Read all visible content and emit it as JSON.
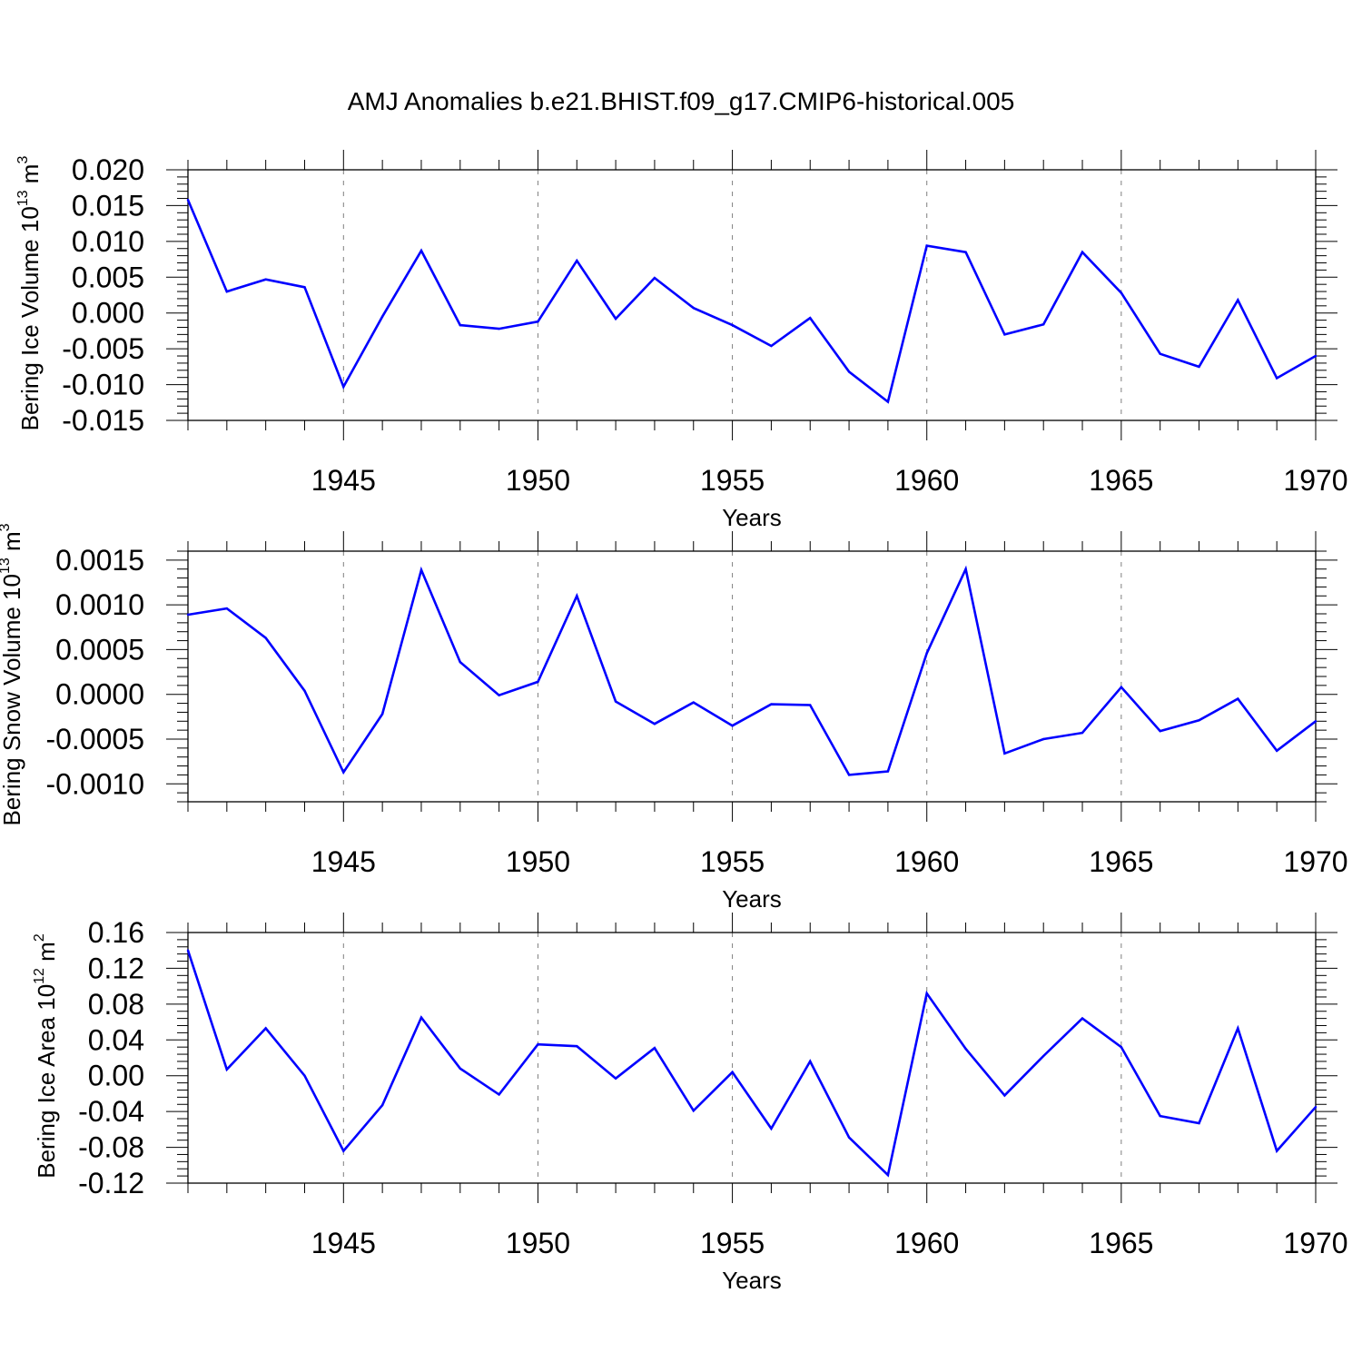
{
  "title": "AMJ Anomalies b.e21.BHIST.f09_g17.CMIP6-historical.005",
  "colors": {
    "series": "#0000ff",
    "axis": "#000000",
    "grid": "#7f7f7f"
  },
  "chart_data": [
    {
      "type": "line",
      "ylabel": {
        "text": "Bering Ice Volume 10",
        "exponent": "13",
        "unit": " m",
        "unit_exponent": "3"
      },
      "xlabel": "Years",
      "xlim": [
        1941,
        1970
      ],
      "ylim": [
        -0.015,
        0.02
      ],
      "yticks": [
        "0.020",
        "0.015",
        "0.010",
        "0.005",
        "0.000",
        "-0.005",
        "-0.010",
        "-0.015"
      ],
      "ytick_values": [
        0.02,
        0.015,
        0.01,
        0.005,
        0.0,
        -0.005,
        -0.01,
        -0.015
      ],
      "xticks": [
        "1945",
        "1950",
        "1955",
        "1960",
        "1965",
        "1970"
      ],
      "xtick_values": [
        1945,
        1950,
        1955,
        1960,
        1965,
        1970
      ],
      "grid": "vertical dashed at major x ticks",
      "x": [
        1941,
        1942,
        1943,
        1944,
        1945,
        1946,
        1947,
        1948,
        1949,
        1950,
        1951,
        1952,
        1953,
        1954,
        1955,
        1956,
        1957,
        1958,
        1959,
        1960,
        1961,
        1962,
        1963,
        1964,
        1965,
        1966,
        1967,
        1968,
        1969,
        1970
      ],
      "series": [
        {
          "values": [
            0.0158,
            0.003,
            0.0047,
            0.0036,
            -0.0103,
            -0.0005,
            0.0087,
            -0.0017,
            -0.0022,
            -0.0012,
            0.0073,
            -0.0008,
            0.0049,
            0.0007,
            -0.0017,
            -0.0046,
            -0.0007,
            -0.0082,
            -0.0124,
            0.0094,
            0.0085,
            -0.003,
            -0.0016,
            0.0085,
            0.0028,
            -0.0057,
            -0.0075,
            0.0018,
            -0.0091,
            -0.006
          ]
        }
      ]
    },
    {
      "type": "line",
      "ylabel": {
        "text": "Bering Snow Volume 10",
        "exponent": "13",
        "unit": " m",
        "unit_exponent": "3"
      },
      "xlabel": "Years",
      "xlim": [
        1941,
        1970
      ],
      "ylim": [
        -0.0012,
        0.0016
      ],
      "yticks": [
        "0.0015",
        "0.0010",
        "0.0005",
        "0.0000",
        "-0.0005",
        "-0.0010"
      ],
      "ytick_values": [
        0.0015,
        0.001,
        0.0005,
        0.0,
        -0.0005,
        -0.001
      ],
      "xticks": [
        "1945",
        "1950",
        "1955",
        "1960",
        "1965",
        "1970"
      ],
      "xtick_values": [
        1945,
        1950,
        1955,
        1960,
        1965,
        1970
      ],
      "grid": "vertical dashed at major x ticks",
      "x": [
        1941,
        1942,
        1943,
        1944,
        1945,
        1946,
        1947,
        1948,
        1949,
        1950,
        1951,
        1952,
        1953,
        1954,
        1955,
        1956,
        1957,
        1958,
        1959,
        1960,
        1961,
        1962,
        1963,
        1964,
        1965,
        1966,
        1967,
        1968,
        1969,
        1970
      ],
      "series": [
        {
          "values": [
            0.00089,
            0.00096,
            0.00063,
            4e-05,
            -0.00087,
            -0.00022,
            0.00139,
            0.00036,
            -1e-05,
            0.00014,
            0.0011,
            -8e-05,
            -0.00033,
            -9e-05,
            -0.00035,
            -0.00011,
            -0.00012,
            -0.0009,
            -0.00086,
            0.00046,
            0.0014,
            -0.00066,
            -0.0005,
            -0.00043,
            8e-05,
            -0.00041,
            -0.00029,
            -5e-05,
            -0.00063,
            -0.0003
          ]
        }
      ]
    },
    {
      "type": "line",
      "ylabel": {
        "text": "Bering Ice Area 10",
        "exponent": "12",
        "unit": " m",
        "unit_exponent": "2"
      },
      "xlabel": "Years",
      "xlim": [
        1941,
        1970
      ],
      "ylim": [
        -0.12,
        0.16
      ],
      "yticks": [
        "0.16",
        "0.12",
        "0.08",
        "0.04",
        "0.00",
        "-0.04",
        "-0.08",
        "-0.12"
      ],
      "ytick_values": [
        0.16,
        0.12,
        0.08,
        0.04,
        0.0,
        -0.04,
        -0.08,
        -0.12
      ],
      "xticks": [
        "1945",
        "1950",
        "1955",
        "1960",
        "1965",
        "1970"
      ],
      "xtick_values": [
        1945,
        1950,
        1955,
        1960,
        1965,
        1970
      ],
      "grid": "vertical dashed at major x ticks",
      "x": [
        1941,
        1942,
        1943,
        1944,
        1945,
        1946,
        1947,
        1948,
        1949,
        1950,
        1951,
        1952,
        1953,
        1954,
        1955,
        1956,
        1957,
        1958,
        1959,
        1960,
        1961,
        1962,
        1963,
        1964,
        1965,
        1966,
        1967,
        1968,
        1969,
        1970
      ],
      "series": [
        {
          "values": [
            0.14,
            0.007,
            0.053,
            0.0,
            -0.084,
            -0.033,
            0.065,
            0.008,
            -0.021,
            0.035,
            0.033,
            -0.003,
            0.031,
            -0.039,
            0.004,
            -0.059,
            0.016,
            -0.069,
            -0.111,
            0.092,
            0.03,
            -0.022,
            0.022,
            0.064,
            0.032,
            -0.045,
            -0.053,
            0.053,
            -0.084,
            -0.035
          ]
        }
      ]
    }
  ]
}
